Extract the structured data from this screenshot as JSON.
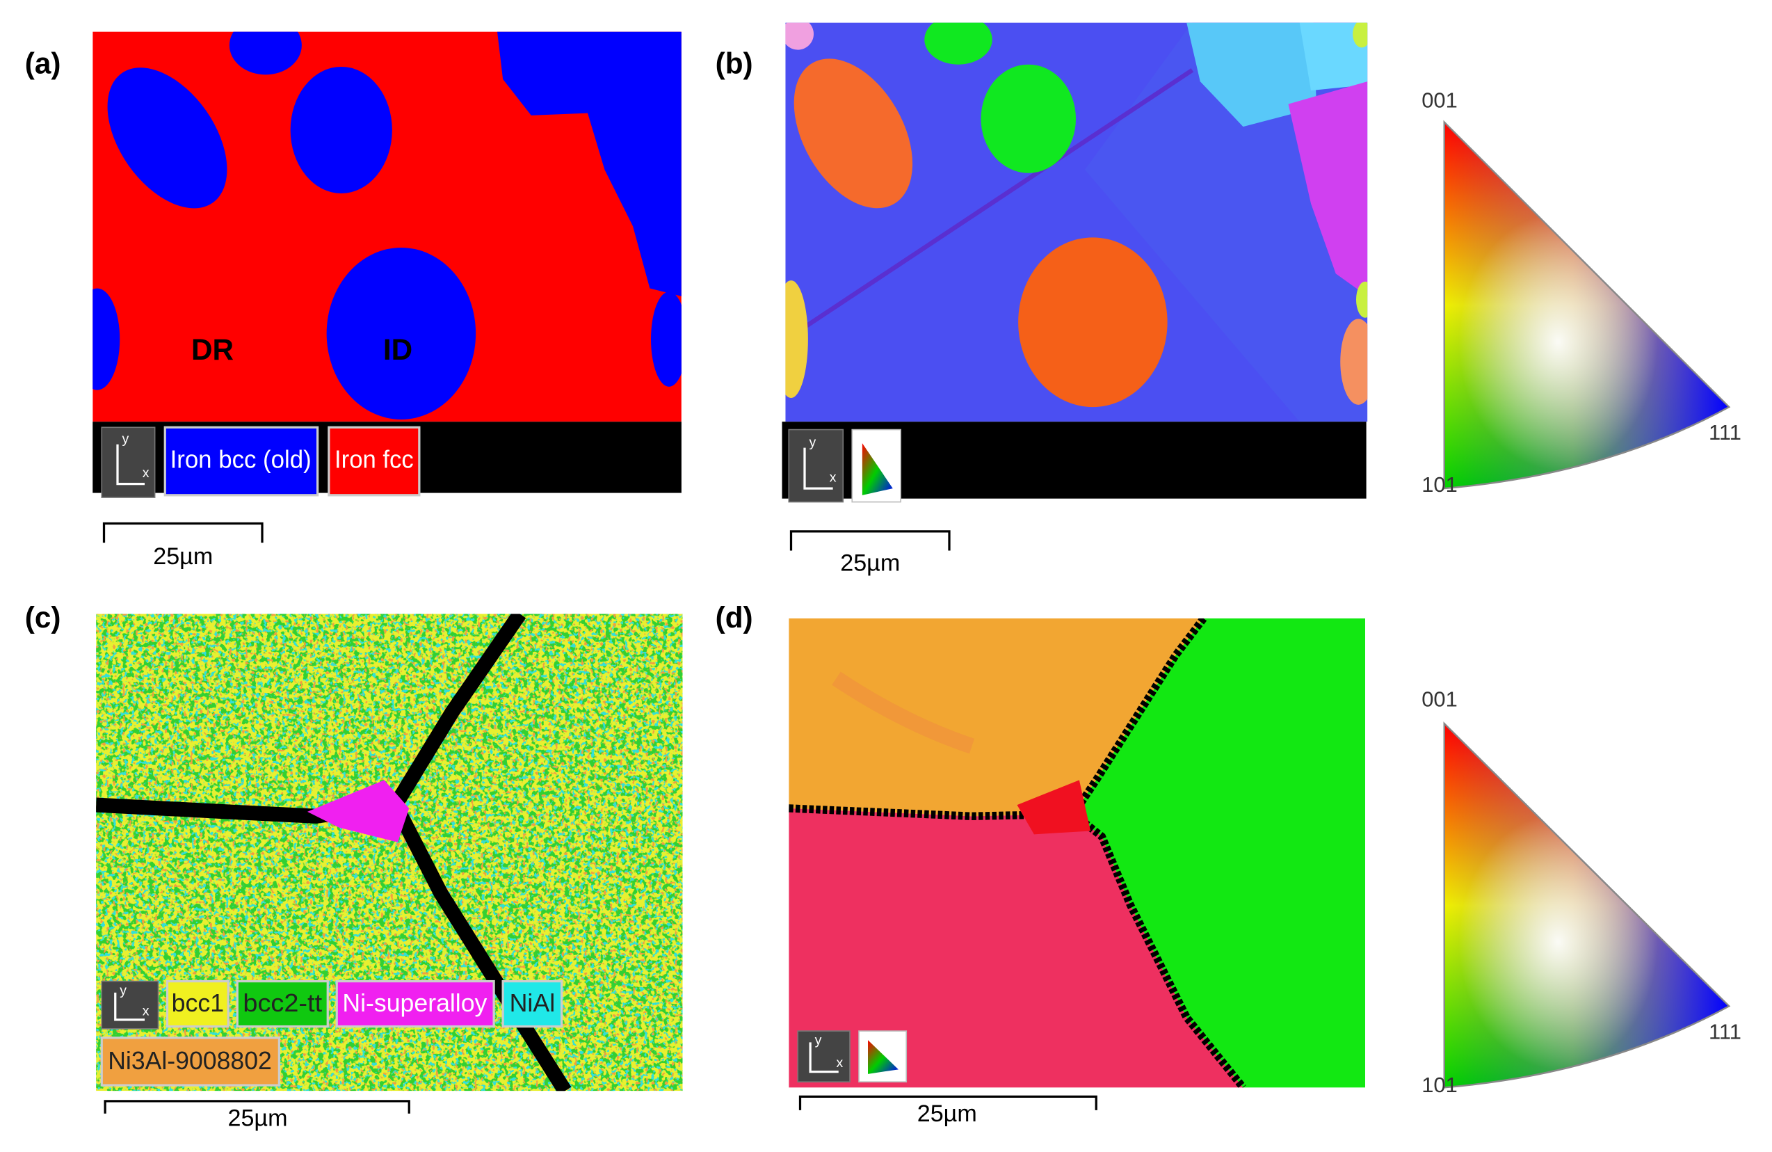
{
  "panels": [
    {
      "label": "(a)",
      "annotations": [
        "DR",
        "ID"
      ],
      "axes": [
        "y",
        "x"
      ],
      "legend": [
        "Iron bcc (old)",
        "Iron fcc"
      ],
      "scale_bar": "25µm"
    },
    {
      "label": "(b)",
      "axes": [
        "y",
        "x"
      ],
      "scale_bar": "25µm"
    },
    {
      "label": "(c)",
      "axes": [
        "y",
        "x"
      ],
      "legend": [
        "bcc1",
        "bcc2-tt",
        "Ni-superalloy",
        "NiAl",
        "Ni3Al-9008802"
      ],
      "scale_bar": "25µm"
    },
    {
      "label": "(d)",
      "axes": [
        "y",
        "x"
      ],
      "scale_bar": "25µm"
    }
  ],
  "ipf_keys": [
    {
      "top": "001",
      "left": "101",
      "right": "111"
    },
    {
      "top": "001",
      "left": "101",
      "right": "111"
    }
  ]
}
